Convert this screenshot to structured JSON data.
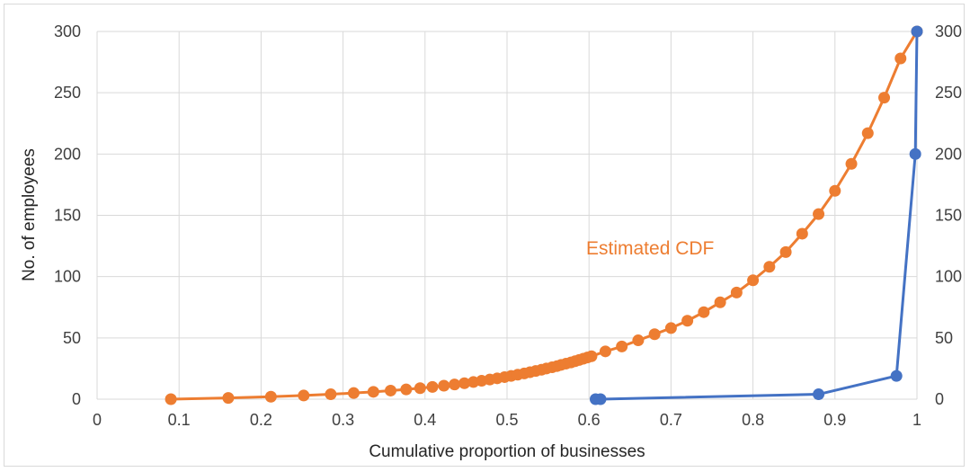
{
  "chart_data": {
    "type": "scatter",
    "title": "",
    "xlabel": "Cumulative proportion of businesses",
    "ylabel": "No. of employees",
    "xlim": [
      0,
      1
    ],
    "ylim": [
      0,
      300
    ],
    "x_ticks": [
      "0",
      "0.1",
      "0.2",
      "0.3",
      "0.4",
      "0.5",
      "0.6",
      "0.7",
      "0.8",
      "0.9",
      "1"
    ],
    "y_ticks": [
      "0",
      "50",
      "100",
      "150",
      "200",
      "250",
      "300"
    ],
    "y2_ticks": [
      "0",
      "50",
      "100",
      "150",
      "200",
      "250",
      "300"
    ],
    "grid": true,
    "legend": "none",
    "annotation": "Estimated CDF",
    "colors": {
      "estimated": "#ED7D31",
      "observed": "#4472C4"
    },
    "series": [
      {
        "name": "Estimated CDF",
        "color": "#ED7D31",
        "points": [
          [
            0.09,
            0
          ],
          [
            0.16,
            1
          ],
          [
            0.212,
            2
          ],
          [
            0.252,
            3
          ],
          [
            0.285,
            4
          ],
          [
            0.313,
            5
          ],
          [
            0.337,
            6
          ],
          [
            0.358,
            7
          ],
          [
            0.377,
            8
          ],
          [
            0.394,
            9
          ],
          [
            0.409,
            10
          ],
          [
            0.423,
            11
          ],
          [
            0.436,
            12
          ],
          [
            0.448,
            13
          ],
          [
            0.459,
            14
          ],
          [
            0.469,
            15
          ],
          [
            0.479,
            16
          ],
          [
            0.488,
            17
          ],
          [
            0.497,
            18
          ],
          [
            0.505,
            19
          ],
          [
            0.513,
            20
          ],
          [
            0.521,
            21
          ],
          [
            0.528,
            22
          ],
          [
            0.535,
            23
          ],
          [
            0.542,
            24
          ],
          [
            0.548,
            25
          ],
          [
            0.555,
            26
          ],
          [
            0.561,
            27
          ],
          [
            0.566,
            28
          ],
          [
            0.572,
            29
          ],
          [
            0.578,
            30
          ],
          [
            0.583,
            31
          ],
          [
            0.588,
            32
          ],
          [
            0.593,
            33
          ],
          [
            0.598,
            34
          ],
          [
            0.603,
            35
          ],
          [
            0.62,
            39
          ],
          [
            0.64,
            43
          ],
          [
            0.66,
            48
          ],
          [
            0.68,
            53
          ],
          [
            0.7,
            58
          ],
          [
            0.72,
            64
          ],
          [
            0.74,
            71
          ],
          [
            0.76,
            79
          ],
          [
            0.78,
            87
          ],
          [
            0.8,
            97
          ],
          [
            0.82,
            108
          ],
          [
            0.84,
            120
          ],
          [
            0.86,
            135
          ],
          [
            0.88,
            151
          ],
          [
            0.9,
            170
          ],
          [
            0.92,
            192
          ],
          [
            0.94,
            217
          ],
          [
            0.96,
            246
          ],
          [
            0.98,
            278
          ],
          [
            1.0,
            300
          ]
        ]
      },
      {
        "name": "",
        "color": "#4472C4",
        "points": [
          [
            0.608,
            0
          ],
          [
            0.614,
            0
          ],
          [
            0.88,
            4
          ],
          [
            0.975,
            19
          ],
          [
            0.998,
            200
          ],
          [
            1.0,
            300
          ]
        ]
      }
    ]
  }
}
